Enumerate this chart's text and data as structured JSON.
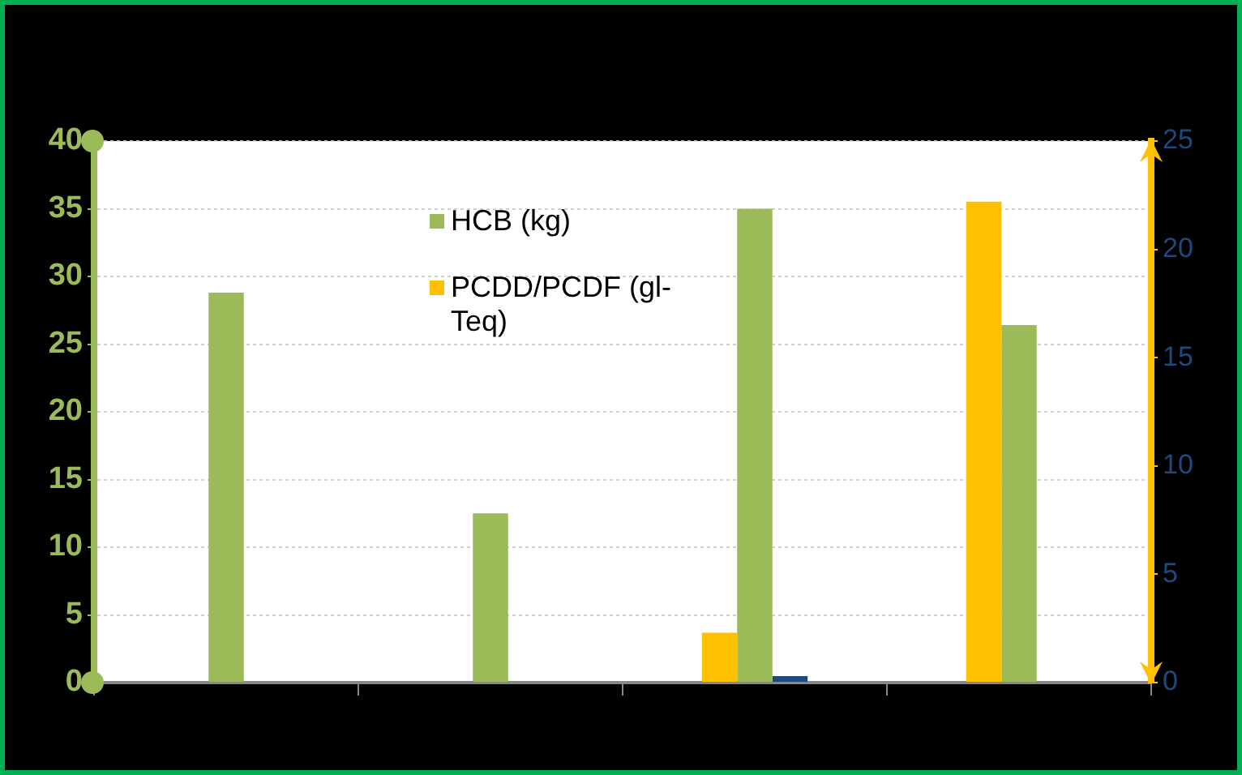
{
  "chart_data": {
    "type": "bar",
    "categories": [
      null,
      null,
      null,
      null
    ],
    "series": [
      {
        "name": "PCDD/PCDF (gl-Teq)",
        "color": "#ffc000",
        "axis": "y2",
        "values": [
          null,
          null,
          2.3,
          22.2
        ]
      },
      {
        "name": "HCB (kg)",
        "color": "#9bbb59",
        "values": [
          28.8,
          12.5,
          35,
          26.4
        ]
      },
      {
        "color": "#1f497d",
        "axis": "y2",
        "values": [
          null,
          null,
          0.3,
          null
        ]
      }
    ],
    "ylim": [
      0,
      40
    ],
    "yticks": [
      0,
      5,
      10,
      15,
      20,
      25,
      30,
      35,
      40
    ],
    "y2lim": [
      0,
      25
    ],
    "y2ticks": [
      0,
      5,
      10,
      15,
      20,
      25
    ],
    "grid": "y",
    "legend": "top"
  }
}
